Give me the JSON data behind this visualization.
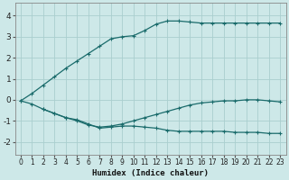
{
  "xlabel": "Humidex (Indice chaleur)",
  "bg_color": "#cde8e8",
  "grid_color": "#aacece",
  "line_color": "#1a6b6b",
  "xlim": [
    -0.5,
    23.5
  ],
  "ylim": [
    -2.6,
    4.6
  ],
  "xticks": [
    0,
    1,
    2,
    3,
    4,
    5,
    6,
    7,
    8,
    9,
    10,
    11,
    12,
    13,
    14,
    15,
    16,
    17,
    18,
    19,
    20,
    21,
    22,
    23
  ],
  "yticks": [
    -2,
    -1,
    0,
    1,
    2,
    3,
    4
  ],
  "series1_x": [
    0,
    1,
    2,
    3,
    4,
    5,
    6,
    7,
    8,
    9,
    10,
    11,
    12,
    13,
    14,
    15,
    16,
    17,
    18,
    19,
    20,
    21,
    22,
    23
  ],
  "series1_y": [
    -0.05,
    0.3,
    0.7,
    1.1,
    1.5,
    1.85,
    2.2,
    2.55,
    2.9,
    3.0,
    3.05,
    3.3,
    3.6,
    3.75,
    3.75,
    3.7,
    3.65,
    3.65,
    3.65,
    3.65,
    3.65,
    3.65,
    3.65,
    3.65
  ],
  "series2_x": [
    0,
    1,
    2,
    3,
    4,
    5,
    6,
    7,
    8,
    9,
    10,
    11,
    12,
    13,
    14,
    15,
    16,
    17,
    18,
    19,
    20,
    21,
    22,
    23
  ],
  "series2_y": [
    -0.05,
    -0.2,
    -0.45,
    -0.65,
    -0.85,
    -1.0,
    -1.2,
    -1.3,
    -1.25,
    -1.15,
    -1.0,
    -0.85,
    -0.7,
    -0.55,
    -0.4,
    -0.25,
    -0.15,
    -0.1,
    -0.05,
    -0.05,
    0.0,
    0.0,
    -0.05,
    -0.1
  ],
  "series3_x": [
    2,
    3,
    4,
    5,
    6,
    7,
    8,
    9,
    10,
    11,
    12,
    13,
    14,
    15,
    16,
    17,
    18,
    19,
    20,
    21,
    22,
    23
  ],
  "series3_y": [
    -0.45,
    -0.65,
    -0.85,
    -0.95,
    -1.15,
    -1.35,
    -1.3,
    -1.25,
    -1.25,
    -1.3,
    -1.35,
    -1.45,
    -1.5,
    -1.5,
    -1.5,
    -1.5,
    -1.5,
    -1.55,
    -1.55,
    -1.55,
    -1.6,
    -1.6
  ]
}
